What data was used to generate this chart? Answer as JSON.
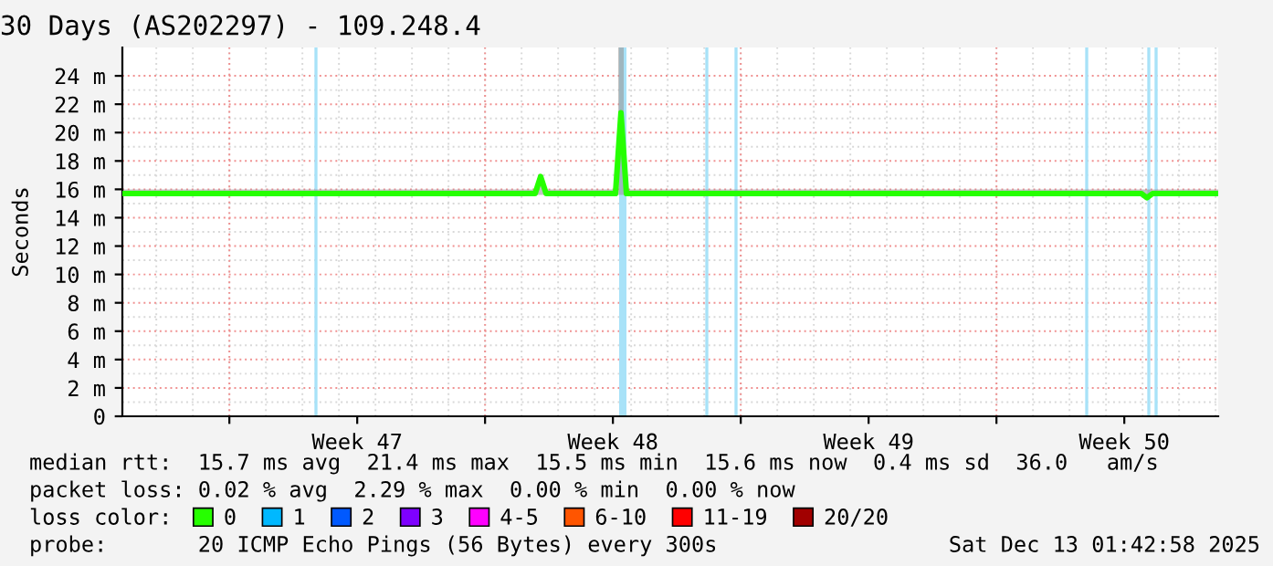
{
  "chart_data": {
    "type": "line",
    "title": "30 Days (AS202297) - 109.248.4",
    "ylabel": "Seconds",
    "legend_title": "loss color:",
    "x": [
      "2025-11-13T01:42",
      "2025-11-15T01:42",
      "2025-11-17T01:42",
      "2025-11-19T01:42",
      "2025-11-21T01:42",
      "2025-11-23T01:42",
      "2025-11-24T08:54",
      "2025-11-24T12:30",
      "2025-11-24T16:06",
      "2025-11-26T13:42",
      "2025-11-26T17:18",
      "2025-11-26T20:54",
      "2025-11-29T01:42",
      "2025-12-01T01:42",
      "2025-12-03T01:42",
      "2025-12-05T01:42",
      "2025-12-07T01:42",
      "2025-12-09T01:42",
      "2025-12-10T23:18",
      "2025-12-11T02:54",
      "2025-12-11T06:30",
      "2025-12-13T01:42"
    ],
    "series": [
      {
        "name": "0",
        "color": "#26ff00",
        "values": [
          15.7,
          15.7,
          15.7,
          15.7,
          15.7,
          15.7,
          15.7,
          16.9,
          15.7,
          15.7,
          21.4,
          15.7,
          15.7,
          15.7,
          15.7,
          15.7,
          15.7,
          15.7,
          15.7,
          15.4,
          15.7,
          15.7
        ],
        "lower": [
          15.6,
          15.6,
          15.6,
          15.6,
          15.6,
          15.6,
          15.6,
          15.6,
          15.6,
          15.6,
          15.6,
          15.6,
          15.6,
          15.6,
          15.6,
          15.6,
          15.6,
          15.6,
          15.6,
          15.3,
          15.6,
          15.6
        ],
        "upper": [
          16.0,
          16.0,
          16.0,
          16.0,
          16.0,
          16.0,
          16.0,
          17.0,
          16.0,
          16.0,
          26.0,
          16.0,
          16.0,
          16.0,
          16.0,
          16.0,
          16.0,
          16.0,
          16.0,
          16.0,
          16.0,
          16.0
        ]
      },
      {
        "name": "1",
        "color": "#00b8ff",
        "values": [
          null,
          null,
          null,
          null,
          null,
          null,
          null,
          null,
          null,
          null,
          null,
          null,
          null,
          null,
          null,
          null,
          null,
          null,
          null,
          null,
          null,
          null
        ]
      },
      {
        "name": "2",
        "color": "#0059ff",
        "values": [
          null,
          null,
          null,
          null,
          null,
          null,
          null,
          null,
          null,
          null,
          null,
          null,
          null,
          null,
          null,
          null,
          null,
          null,
          null,
          null,
          null,
          null
        ]
      },
      {
        "name": "3",
        "color": "#7e00ff",
        "values": [
          null,
          null,
          null,
          null,
          null,
          null,
          null,
          null,
          null,
          null,
          null,
          null,
          null,
          null,
          null,
          null,
          null,
          null,
          null,
          null,
          null,
          null
        ]
      },
      {
        "name": "4-5",
        "color": "#ff00ff",
        "values": [
          null,
          null,
          null,
          null,
          null,
          null,
          null,
          null,
          null,
          null,
          null,
          null,
          null,
          null,
          null,
          null,
          null,
          null,
          null,
          null,
          null,
          null
        ]
      },
      {
        "name": "6-10",
        "color": "#ff5500",
        "values": [
          null,
          null,
          null,
          null,
          null,
          null,
          null,
          null,
          null,
          null,
          null,
          null,
          null,
          null,
          null,
          null,
          null,
          null,
          null,
          null,
          null,
          null
        ]
      },
      {
        "name": "11-19",
        "color": "#ff0000",
        "values": [
          null,
          null,
          null,
          null,
          null,
          null,
          null,
          null,
          null,
          null,
          null,
          null,
          null,
          null,
          null,
          null,
          null,
          null,
          null,
          null,
          null,
          null
        ]
      },
      {
        "name": "20/20",
        "color": "#a10000",
        "values": [
          null,
          null,
          null,
          null,
          null,
          null,
          null,
          null,
          null,
          null,
          null,
          null,
          null,
          null,
          null,
          null,
          null,
          null,
          null,
          null,
          null,
          null
        ]
      }
    ],
    "xlim": [
      "2025-11-13T01:42",
      "2025-12-13T01:42"
    ],
    "xticks": [
      {
        "value": "2025-11-16T00:00",
        "label": null
      },
      {
        "value": "2025-11-19T12:00",
        "label": "Week 47"
      },
      {
        "value": "2025-11-23T00:00",
        "label": null
      },
      {
        "value": "2025-11-26T12:00",
        "label": "Week 48"
      },
      {
        "value": "2025-11-30T00:00",
        "label": null
      },
      {
        "value": "2025-12-03T12:00",
        "label": "Week 49"
      },
      {
        "value": "2025-12-07T00:00",
        "label": null
      },
      {
        "value": "2025-12-10T12:00",
        "label": "Week 50"
      }
    ],
    "ylim": [
      0,
      26
    ],
    "yticks": [
      {
        "value": 0,
        "label": "0"
      },
      {
        "value": 2,
        "label": "2 m"
      },
      {
        "value": 4,
        "label": "4 m"
      },
      {
        "value": 6,
        "label": "6 m"
      },
      {
        "value": 8,
        "label": "8 m"
      },
      {
        "value": 10,
        "label": "10 m"
      },
      {
        "value": 12,
        "label": "12 m"
      },
      {
        "value": 14,
        "label": "14 m"
      },
      {
        "value": 16,
        "label": "16 m"
      },
      {
        "value": 18,
        "label": "18 m"
      },
      {
        "value": 20,
        "label": "20 m"
      },
      {
        "value": 22,
        "label": "22 m"
      },
      {
        "value": 24,
        "label": "24 m"
      }
    ],
    "ref_lines": [
      {
        "axis": "x",
        "value": "2025-11-18T08:54",
        "color": "#a8e2f8"
      },
      {
        "axis": "x",
        "value": "2025-11-29T01:42",
        "color": "#a8e2f8"
      },
      {
        "axis": "x",
        "value": "2025-11-29T20:54",
        "color": "#a8e2f8"
      },
      {
        "axis": "x",
        "value": "2025-12-09T11:18",
        "color": "#a8e2f8"
      },
      {
        "axis": "x",
        "value": "2025-12-11T04:06",
        "color": "#a8e2f8"
      },
      {
        "axis": "x",
        "value": "2025-12-11T08:54",
        "color": "#a8e2f8"
      }
    ],
    "bands": [
      {
        "axis": "x",
        "from": "2025-11-26T16:06",
        "to": "2025-11-26T20:54",
        "color": "#a8e2f8"
      }
    ],
    "grid": true,
    "legend": "bottom",
    "annotations": [
      "median rtt:  15.7 ms avg  21.4 ms max  15.5 ms min  15.6 ms now  0.4 ms sd  36.0   am/s",
      "packet loss: 0.02 % avg  2.29 % max  0.00 % min  0.00 % now",
      "probe:       20 ICMP Echo Pings (56 Bytes) every 300s",
      "Sat Dec 13 01:42:58 2025"
    ]
  }
}
